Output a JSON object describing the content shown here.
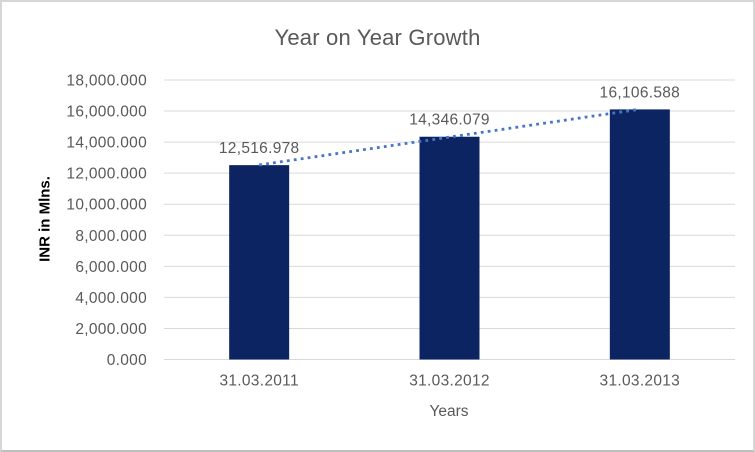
{
  "chart_data": {
    "type": "bar",
    "title": "Year on Year Growth",
    "xlabel": "Years",
    "ylabel": "INR in Mlns.",
    "categories": [
      "31.03.2011",
      "31.03.2012",
      "31.03.2013"
    ],
    "values": [
      12516.978,
      14346.079,
      16106.588
    ],
    "value_labels": [
      "12,516.978",
      "14,346.079",
      "16,106.588"
    ],
    "ylim": [
      0,
      18000
    ],
    "ytick_step": 2000,
    "ytick_labels": [
      "0.000",
      "2,000.000",
      "4,000.000",
      "6,000.000",
      "8,000.000",
      "10,000.000",
      "12,000.000",
      "14,000.000",
      "16,000.000",
      "18,000.000"
    ],
    "grid": true,
    "legend": "none",
    "trendline": {
      "type": "linear",
      "style": "dotted"
    },
    "colors": {
      "bar": "#0c2461",
      "trendline": "#4676c4",
      "gridline": "#d9d9d9",
      "axis_text": "#595959",
      "data_label_text": "#595959",
      "title_text": "#595959",
      "y_title_text": "#000000",
      "background": "#ffffff",
      "border": "#d6d6d6"
    }
  }
}
